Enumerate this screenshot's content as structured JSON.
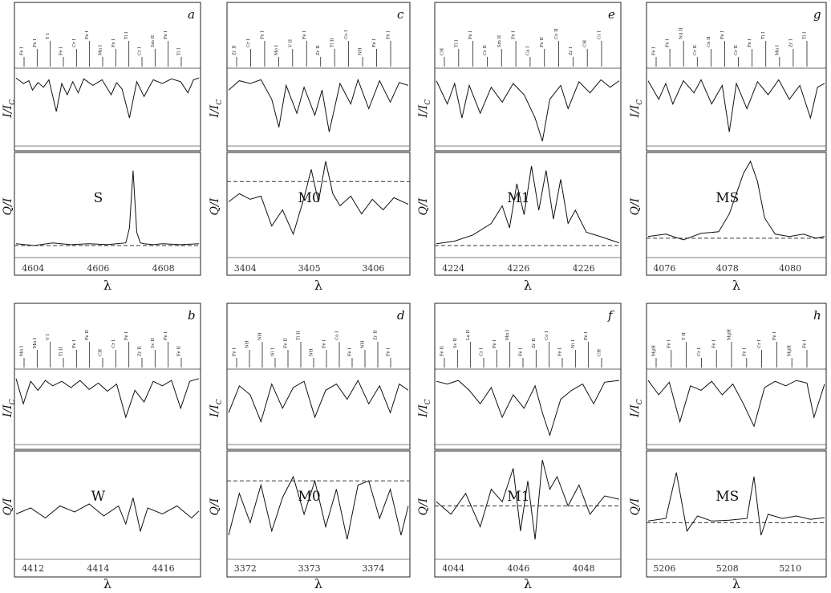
{
  "figure": {
    "axis_labels": {
      "intensity": "I/I",
      "intensity_sub": "C",
      "polarization": "Q/I",
      "wavelength": "λ"
    }
  },
  "chart_data": [
    {
      "type": "line",
      "panel": "a",
      "profile_label": "S",
      "x_ticks": [
        "4604",
        "4606",
        "4608"
      ],
      "line_ids": [
        "Fe I",
        "Fe I",
        "Y I",
        "Fe I",
        "Cr I",
        "Fe I",
        "Mn I",
        "Fe I",
        "Ti I",
        "Cr I",
        "Sm II",
        "Fe I",
        "Ti I"
      ],
      "intensity": {
        "ylim": [
          0.3,
          1.05
        ],
        "x": [
          0.0,
          0.04,
          0.07,
          0.09,
          0.12,
          0.15,
          0.18,
          0.22,
          0.25,
          0.28,
          0.31,
          0.34,
          0.37,
          0.42,
          0.47,
          0.52,
          0.55,
          0.58,
          0.62,
          0.66,
          0.7,
          0.75,
          0.8,
          0.85,
          0.9,
          0.94,
          0.97,
          1.0
        ],
        "y": [
          0.98,
          0.92,
          0.95,
          0.85,
          0.93,
          0.88,
          0.96,
          0.62,
          0.92,
          0.8,
          0.94,
          0.82,
          0.97,
          0.9,
          0.96,
          0.8,
          0.93,
          0.86,
          0.55,
          0.94,
          0.78,
          0.96,
          0.92,
          0.97,
          0.94,
          0.82,
          0.96,
          0.98
        ]
      },
      "polarization": {
        "ylim": [
          -0.1,
          1.0
        ],
        "reference": 0.0,
        "x": [
          0.0,
          0.1,
          0.2,
          0.3,
          0.4,
          0.5,
          0.55,
          0.6,
          0.62,
          0.64,
          0.66,
          0.68,
          0.7,
          0.75,
          0.8,
          0.9,
          1.0
        ],
        "y": [
          0.02,
          0.0,
          0.03,
          0.01,
          0.02,
          0.01,
          0.02,
          0.03,
          0.2,
          0.85,
          0.15,
          0.03,
          0.02,
          0.01,
          0.02,
          0.01,
          0.02
        ]
      }
    },
    {
      "type": "line",
      "panel": "b",
      "profile_label": "W",
      "x_ticks": [
        "4412",
        "4414",
        "4416"
      ],
      "line_ids": [
        "Mn I",
        "Mn I",
        "V I",
        "Ti II",
        "Fe I",
        "Fe II",
        "CH",
        "Cr I",
        "Fe I",
        "Zr II",
        "Sc II",
        "Fe I",
        "Fe II"
      ],
      "intensity": {
        "ylim": [
          0.3,
          1.05
        ],
        "x": [
          0.0,
          0.04,
          0.08,
          0.12,
          0.16,
          0.2,
          0.25,
          0.3,
          0.35,
          0.4,
          0.45,
          0.5,
          0.55,
          0.6,
          0.65,
          0.7,
          0.75,
          0.8,
          0.85,
          0.9,
          0.95,
          1.0
        ],
        "y": [
          0.98,
          0.7,
          0.95,
          0.85,
          0.96,
          0.9,
          0.95,
          0.88,
          0.96,
          0.86,
          0.93,
          0.84,
          0.92,
          0.55,
          0.85,
          0.72,
          0.95,
          0.9,
          0.96,
          0.65,
          0.95,
          0.98
        ]
      },
      "polarization": {
        "ylim": [
          -0.4,
          0.6
        ],
        "x": [
          0.0,
          0.08,
          0.16,
          0.24,
          0.32,
          0.4,
          0.48,
          0.56,
          0.6,
          0.64,
          0.68,
          0.72,
          0.8,
          0.88,
          0.96,
          1.0
        ],
        "y": [
          0.02,
          0.08,
          -0.02,
          0.1,
          0.04,
          0.12,
          0.0,
          0.1,
          -0.08,
          0.18,
          -0.15,
          0.08,
          0.02,
          0.1,
          -0.02,
          0.05
        ]
      }
    },
    {
      "type": "line",
      "panel": "c",
      "profile_label": "M0",
      "x_ticks": [
        "3404",
        "3405",
        "3406"
      ],
      "line_ids": [
        "Zr II",
        "Cr I",
        "Fe I",
        "Mo I",
        "V II",
        "Fe I",
        "Zr II",
        "Ti II",
        "Co I",
        "NH",
        "Fe I",
        "Fe I"
      ],
      "intensity": {
        "ylim": [
          0.3,
          1.05
        ],
        "x": [
          0.0,
          0.06,
          0.12,
          0.18,
          0.24,
          0.28,
          0.32,
          0.38,
          0.42,
          0.48,
          0.52,
          0.56,
          0.62,
          0.68,
          0.72,
          0.78,
          0.84,
          0.9,
          0.95,
          1.0
        ],
        "y": [
          0.85,
          0.95,
          0.92,
          0.96,
          0.75,
          0.45,
          0.9,
          0.6,
          0.88,
          0.58,
          0.85,
          0.4,
          0.92,
          0.7,
          0.96,
          0.65,
          0.95,
          0.72,
          0.93,
          0.9
        ]
      },
      "polarization": {
        "ylim": [
          -0.6,
          0.6
        ],
        "reference": 0.3,
        "x": [
          0.0,
          0.06,
          0.12,
          0.18,
          0.24,
          0.3,
          0.36,
          0.42,
          0.46,
          0.5,
          0.54,
          0.58,
          0.62,
          0.68,
          0.74,
          0.8,
          0.86,
          0.92,
          1.0
        ],
        "y": [
          0.05,
          0.15,
          0.08,
          0.12,
          -0.25,
          -0.05,
          -0.35,
          0.1,
          0.45,
          0.05,
          0.55,
          0.15,
          0.0,
          0.12,
          -0.1,
          0.08,
          -0.05,
          0.1,
          0.02
        ]
      }
    },
    {
      "type": "line",
      "panel": "d",
      "profile_label": "M0",
      "x_ticks": [
        "3372",
        "3373",
        "3374"
      ],
      "line_ids": [
        "Fe I",
        "NH",
        "NH",
        "Ni I",
        "Fe II",
        "Ti II",
        "NH",
        "Fe I",
        "Co I",
        "Fe I",
        "NH",
        "Zr II",
        "Fe I"
      ],
      "intensity": {
        "ylim": [
          0.3,
          1.05
        ],
        "x": [
          0.0,
          0.06,
          0.12,
          0.18,
          0.24,
          0.3,
          0.36,
          0.42,
          0.48,
          0.54,
          0.6,
          0.66,
          0.72,
          0.78,
          0.84,
          0.9,
          0.95,
          1.0
        ],
        "y": [
          0.6,
          0.9,
          0.8,
          0.5,
          0.92,
          0.65,
          0.88,
          0.95,
          0.55,
          0.85,
          0.92,
          0.75,
          0.96,
          0.7,
          0.9,
          0.6,
          0.92,
          0.85
        ]
      },
      "polarization": {
        "ylim": [
          -0.6,
          0.6
        ],
        "reference": 0.3,
        "x": [
          0.0,
          0.06,
          0.12,
          0.18,
          0.24,
          0.3,
          0.36,
          0.42,
          0.48,
          0.54,
          0.6,
          0.66,
          0.72,
          0.78,
          0.84,
          0.9,
          0.96,
          1.0
        ],
        "y": [
          -0.35,
          0.15,
          -0.2,
          0.25,
          -0.3,
          0.1,
          0.35,
          -0.1,
          0.3,
          -0.25,
          0.2,
          -0.4,
          0.25,
          0.3,
          -0.15,
          0.2,
          -0.35,
          0.0
        ]
      }
    },
    {
      "type": "line",
      "panel": "e",
      "profile_label": "M1",
      "x_ticks": [
        "4224",
        "4226",
        "4226"
      ],
      "line_ids": [
        "CH",
        "Ti I",
        "Fe I",
        "Cr II",
        "Sm II",
        "Fe I",
        "Ca I",
        "Fe II",
        "Co II",
        "Zr I",
        "CH",
        "Cr I"
      ],
      "intensity": {
        "ylim": [
          0.3,
          1.05
        ],
        "x": [
          0.0,
          0.06,
          0.1,
          0.14,
          0.18,
          0.24,
          0.3,
          0.36,
          0.42,
          0.48,
          0.54,
          0.58,
          0.62,
          0.68,
          0.72,
          0.78,
          0.84,
          0.9,
          0.95,
          1.0
        ],
        "y": [
          0.95,
          0.7,
          0.92,
          0.55,
          0.9,
          0.6,
          0.88,
          0.72,
          0.92,
          0.8,
          0.55,
          0.3,
          0.75,
          0.9,
          0.65,
          0.94,
          0.82,
          0.96,
          0.88,
          0.95
        ]
      },
      "polarization": {
        "ylim": [
          -0.1,
          1.0
        ],
        "reference": 0.0,
        "x": [
          0.0,
          0.1,
          0.2,
          0.3,
          0.36,
          0.4,
          0.44,
          0.48,
          0.52,
          0.56,
          0.6,
          0.64,
          0.68,
          0.72,
          0.76,
          0.82,
          0.9,
          1.0
        ],
        "y": [
          0.02,
          0.05,
          0.12,
          0.25,
          0.45,
          0.2,
          0.7,
          0.35,
          0.9,
          0.4,
          0.85,
          0.3,
          0.75,
          0.25,
          0.4,
          0.15,
          0.1,
          0.03
        ]
      }
    },
    {
      "type": "line",
      "panel": "f",
      "profile_label": "M1",
      "x_ticks": [
        "4044",
        "4046",
        "4048"
      ],
      "line_ids": [
        "Fe II",
        "Sc II",
        "La II",
        "Cr I",
        "Fe I",
        "Mn I",
        "Fe I",
        "Zr II",
        "Co I",
        "Fe I",
        "Ni I",
        "Fe I",
        "CH"
      ],
      "intensity": {
        "ylim": [
          0.3,
          1.05
        ],
        "x": [
          0.0,
          0.06,
          0.12,
          0.18,
          0.24,
          0.3,
          0.36,
          0.42,
          0.48,
          0.54,
          0.58,
          0.62,
          0.68,
          0.74,
          0.8,
          0.86,
          0.92,
          1.0
        ],
        "y": [
          0.95,
          0.92,
          0.96,
          0.85,
          0.7,
          0.88,
          0.55,
          0.8,
          0.65,
          0.9,
          0.6,
          0.35,
          0.75,
          0.85,
          0.92,
          0.7,
          0.94,
          0.96
        ]
      },
      "polarization": {
        "ylim": [
          -0.6,
          0.6
        ],
        "reference": 0.0,
        "x": [
          0.0,
          0.08,
          0.16,
          0.24,
          0.3,
          0.36,
          0.42,
          0.46,
          0.5,
          0.54,
          0.58,
          0.62,
          0.66,
          0.72,
          0.78,
          0.84,
          0.92,
          1.0
        ],
        "y": [
          0.05,
          -0.1,
          0.15,
          -0.25,
          0.2,
          0.05,
          0.45,
          -0.3,
          0.3,
          -0.4,
          0.55,
          0.2,
          0.35,
          0.0,
          0.25,
          -0.1,
          0.12,
          0.08
        ]
      }
    },
    {
      "type": "line",
      "panel": "g",
      "profile_label": "MS",
      "x_ticks": [
        "4076",
        "4078",
        "4080"
      ],
      "line_ids": [
        "Fe I",
        "Fe I",
        "Nd II",
        "Cr II",
        "Ce II",
        "Fe I",
        "Cr II",
        "Fe I",
        "Ti I",
        "Mn I",
        "Zr I",
        "Ti I"
      ],
      "intensity": {
        "ylim": [
          0.3,
          1.05
        ],
        "x": [
          0.0,
          0.06,
          0.1,
          0.14,
          0.2,
          0.26,
          0.3,
          0.36,
          0.42,
          0.46,
          0.5,
          0.56,
          0.62,
          0.68,
          0.74,
          0.8,
          0.86,
          0.92,
          0.96,
          1.0
        ],
        "y": [
          0.95,
          0.75,
          0.92,
          0.7,
          0.95,
          0.82,
          0.96,
          0.7,
          0.9,
          0.4,
          0.92,
          0.65,
          0.94,
          0.8,
          0.96,
          0.75,
          0.9,
          0.55,
          0.88,
          0.92
        ]
      },
      "polarization": {
        "ylim": [
          -0.2,
          1.0
        ],
        "reference": 0.0,
        "x": [
          0.0,
          0.1,
          0.2,
          0.3,
          0.4,
          0.46,
          0.5,
          0.54,
          0.58,
          0.62,
          0.66,
          0.72,
          0.8,
          0.88,
          0.95,
          1.0
        ],
        "y": [
          0.02,
          0.05,
          -0.02,
          0.06,
          0.08,
          0.3,
          0.55,
          0.8,
          0.95,
          0.7,
          0.25,
          0.05,
          0.02,
          0.05,
          0.0,
          0.02
        ]
      }
    },
    {
      "type": "line",
      "panel": "h",
      "profile_label": "MS",
      "x_ticks": [
        "5206",
        "5208",
        "5210"
      ],
      "line_ids": [
        "MgH",
        "Fe I",
        "Y II",
        "Cr I",
        "Fe I",
        "MgH",
        "Fe I",
        "Cr I",
        "Fe I",
        "MgH",
        "Fe I"
      ],
      "intensity": {
        "ylim": [
          0.3,
          1.05
        ],
        "x": [
          0.0,
          0.06,
          0.12,
          0.18,
          0.24,
          0.3,
          0.36,
          0.42,
          0.48,
          0.54,
          0.6,
          0.66,
          0.72,
          0.78,
          0.84,
          0.9,
          0.94,
          1.0
        ],
        "y": [
          0.96,
          0.8,
          0.94,
          0.5,
          0.9,
          0.85,
          0.95,
          0.8,
          0.92,
          0.7,
          0.45,
          0.88,
          0.95,
          0.9,
          0.96,
          0.93,
          0.55,
          0.92
        ]
      },
      "polarization": {
        "ylim": [
          -0.4,
          0.8
        ],
        "reference": 0.0,
        "x": [
          0.0,
          0.1,
          0.16,
          0.22,
          0.28,
          0.36,
          0.46,
          0.56,
          0.6,
          0.64,
          0.68,
          0.76,
          0.84,
          0.92,
          1.0
        ],
        "y": [
          0.02,
          0.05,
          0.6,
          -0.1,
          0.08,
          0.02,
          0.03,
          0.05,
          0.55,
          -0.15,
          0.1,
          0.05,
          0.08,
          0.04,
          0.06
        ]
      }
    }
  ]
}
